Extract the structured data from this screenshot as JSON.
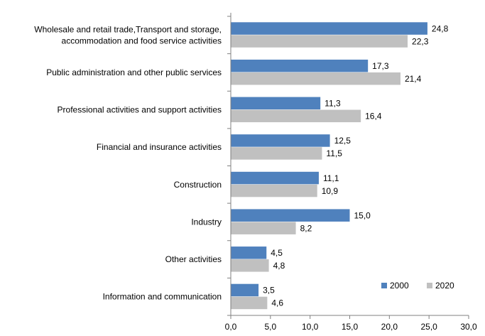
{
  "chart_data": {
    "type": "bar",
    "orientation": "horizontal",
    "categories": [
      [
        "Wholesale and retail trade,Transport and storage,",
        "accommodation and food service activities"
      ],
      [
        "Public administration and other public services"
      ],
      [
        "Professional activities and support activities"
      ],
      [
        "Financial and insurance activities"
      ],
      [
        "Construction"
      ],
      [
        "Industry"
      ],
      [
        "Other activities"
      ],
      [
        "Information and communication"
      ]
    ],
    "series": [
      {
        "name": "2000",
        "color": "#4F81BD",
        "values": [
          24.8,
          17.3,
          11.3,
          12.5,
          11.1,
          15.0,
          4.5,
          3.5
        ],
        "labels": [
          "24,8",
          "17,3",
          "11,3",
          "12,5",
          "11,1",
          "15,0",
          "4,5",
          "3,5"
        ]
      },
      {
        "name": "2020",
        "color": "#C0C0C0",
        "values": [
          22.3,
          21.4,
          16.4,
          11.5,
          10.9,
          8.2,
          4.8,
          4.6
        ],
        "labels": [
          "22,3",
          "21,4",
          "16,4",
          "11,5",
          "10,9",
          "8,2",
          "4,8",
          "4,6"
        ]
      }
    ],
    "xlim": [
      0,
      30
    ],
    "ticks": [
      "0,0",
      "5,0",
      "10,0",
      "15,0",
      "20,0",
      "25,0",
      "30,0"
    ],
    "grid": false,
    "legend": "bottom-right",
    "axis_color": "#808080"
  }
}
